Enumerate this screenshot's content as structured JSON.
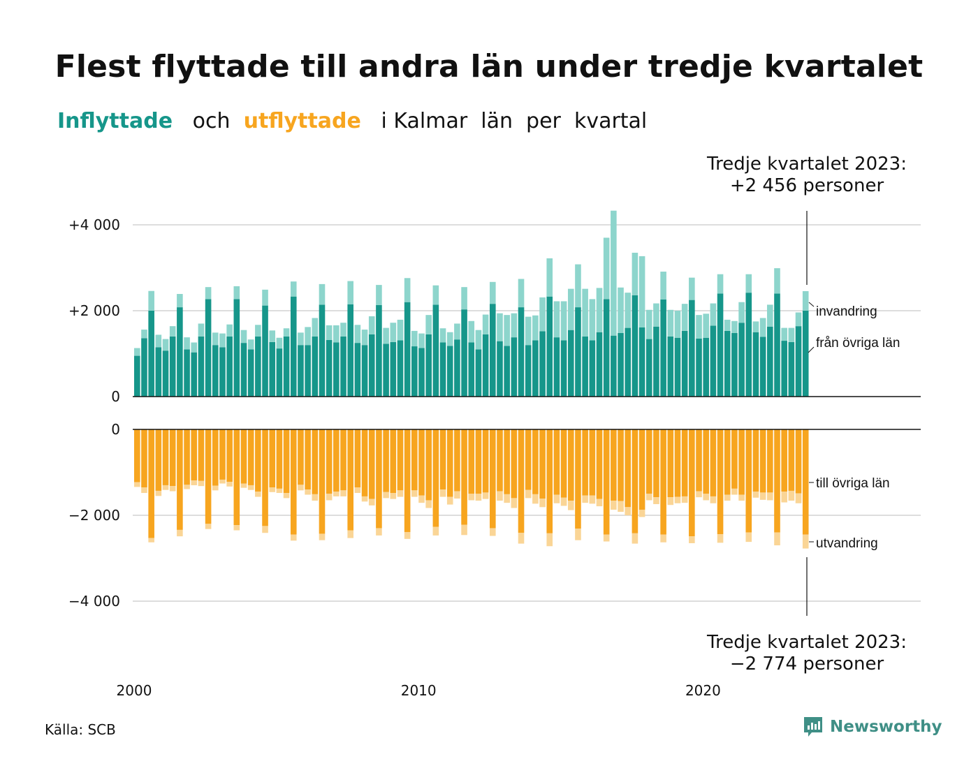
{
  "title": "Flest flyttade till andra län under tredje kvartalet",
  "subtitle": {
    "part1": "Inflyttade",
    "part2": "och",
    "part3": "utflyttade",
    "part4": "i Kalmar  län  per  kvartal"
  },
  "colors": {
    "in_domestic": "#16968a",
    "in_immigration": "#8dd5cc",
    "out_domestic": "#f7a51f",
    "out_emigration": "#fad596",
    "gridline": "#dddddd",
    "axis": "#111111",
    "brand": "#3f8f86"
  },
  "chart_data": [
    {
      "type": "bar",
      "stacked": true,
      "title": "Inflyttade",
      "x": {
        "start_year": 2000,
        "periods_per_year": 4,
        "tick_labels": [
          "2000",
          "2010",
          "2020"
        ]
      },
      "ylim": [
        0,
        4300
      ],
      "yticks": [
        0,
        2000,
        4000
      ],
      "ytick_labels": [
        "0",
        "+2 000",
        "+4 000"
      ],
      "grid": true,
      "series": [
        {
          "name": "från övriga län",
          "values": [
            950,
            1360,
            2000,
            1150,
            1070,
            1400,
            2080,
            1100,
            1030,
            1400,
            2270,
            1200,
            1150,
            1400,
            2270,
            1250,
            1100,
            1400,
            2120,
            1270,
            1120,
            1400,
            2330,
            1200,
            1200,
            1400,
            2140,
            1320,
            1260,
            1400,
            2150,
            1250,
            1200,
            1450,
            2130,
            1230,
            1270,
            1310,
            2200,
            1170,
            1130,
            1450,
            2140,
            1260,
            1180,
            1330,
            2030,
            1260,
            1100,
            1450,
            2160,
            1290,
            1180,
            1380,
            2080,
            1200,
            1310,
            1520,
            2330,
            1380,
            1310,
            1550,
            2080,
            1400,
            1310,
            1500,
            2270,
            1420,
            1480,
            1600,
            2360,
            1610,
            1340,
            1630,
            2260,
            1400,
            1370,
            1530,
            2250,
            1350,
            1370,
            1650,
            2400,
            1530,
            1480,
            1720,
            2420,
            1500,
            1390,
            1630,
            2400,
            1300,
            1270,
            1640,
            2000
          ]
        },
        {
          "name": "invandring",
          "values": [
            180,
            200,
            460,
            290,
            270,
            240,
            310,
            280,
            230,
            300,
            280,
            290,
            320,
            280,
            300,
            300,
            230,
            270,
            370,
            270,
            250,
            190,
            350,
            290,
            420,
            430,
            480,
            340,
            400,
            320,
            540,
            420,
            360,
            420,
            470,
            370,
            450,
            480,
            560,
            360,
            340,
            450,
            450,
            330,
            320,
            370,
            520,
            500,
            450,
            460,
            510,
            650,
            720,
            560,
            660,
            660,
            580,
            790,
            890,
            840,
            910,
            960,
            1000,
            1110,
            960,
            1030,
            1430,
            2910,
            1060,
            820,
            990,
            1660,
            680,
            540,
            650,
            620,
            630,
            630,
            520,
            550,
            560,
            520,
            450,
            260,
            280,
            480,
            430,
            250,
            440,
            510,
            590,
            300,
            330,
            320,
            456
          ]
        }
      ]
    },
    {
      "type": "bar",
      "stacked": true,
      "title": "Utflyttade",
      "ylim": [
        -4500,
        0
      ],
      "yticks": [
        0,
        -2000,
        -4000
      ],
      "ytick_labels": [
        "0",
        "−2 000",
        "−4 000"
      ],
      "grid": true,
      "series": [
        {
          "name": "till övriga län",
          "values": [
            -1230,
            -1350,
            -2530,
            -1430,
            -1300,
            -1320,
            -2340,
            -1290,
            -1190,
            -1200,
            -2200,
            -1310,
            -1170,
            -1220,
            -2230,
            -1260,
            -1300,
            -1450,
            -2250,
            -1350,
            -1380,
            -1480,
            -2450,
            -1290,
            -1400,
            -1510,
            -2430,
            -1500,
            -1450,
            -1420,
            -2350,
            -1350,
            -1560,
            -1620,
            -2300,
            -1460,
            -1480,
            -1420,
            -2390,
            -1420,
            -1540,
            -1650,
            -2270,
            -1400,
            -1570,
            -1440,
            -2220,
            -1500,
            -1500,
            -1470,
            -2300,
            -1440,
            -1510,
            -1600,
            -2410,
            -1410,
            -1510,
            -1610,
            -2420,
            -1520,
            -1590,
            -1660,
            -2310,
            -1540,
            -1540,
            -1620,
            -2450,
            -1660,
            -1670,
            -1810,
            -2420,
            -1870,
            -1500,
            -1580,
            -2450,
            -1580,
            -1570,
            -1560,
            -2490,
            -1440,
            -1500,
            -1560,
            -2440,
            -1520,
            -1380,
            -1520,
            -2400,
            -1450,
            -1470,
            -1470,
            -2400,
            -1450,
            -1430,
            -1490,
            -2450
          ]
        },
        {
          "name": "utvandring",
          "values": [
            -110,
            -130,
            -100,
            -120,
            -110,
            -120,
            -150,
            -100,
            -110,
            -120,
            -120,
            -110,
            -90,
            -110,
            -120,
            -100,
            -110,
            -120,
            -160,
            -110,
            -100,
            -120,
            -140,
            -130,
            -120,
            -150,
            -150,
            -150,
            -110,
            -140,
            -180,
            -130,
            -120,
            -150,
            -170,
            -140,
            -140,
            -150,
            -160,
            -150,
            -170,
            -180,
            -200,
            -170,
            -180,
            -170,
            -240,
            -150,
            -160,
            -150,
            -180,
            -220,
            -200,
            -230,
            -250,
            -190,
            -220,
            -200,
            -300,
            -200,
            -190,
            -220,
            -270,
            -170,
            -190,
            -170,
            -160,
            -210,
            -250,
            -190,
            -240,
            -170,
            -150,
            -160,
            -180,
            -180,
            -150,
            -150,
            -160,
            -140,
            -150,
            -160,
            -200,
            -140,
            -140,
            -140,
            -220,
            -140,
            -170,
            -180,
            -300,
            -250,
            -230,
            -230,
            -324
          ]
        }
      ]
    }
  ],
  "annotations": {
    "top_line1": "Tredje kvartalet 2023:",
    "top_line2": "+2 456 personer",
    "bottom_line1": "Tredje kvartalet 2023:",
    "bottom_line2": "−2 774 personer",
    "label_invandring": "invandring",
    "label_fran": "från övriga län",
    "label_till": "till övriga län",
    "label_utvandring": "utvandring"
  },
  "footer": {
    "source": "Källa: SCB",
    "brand": "Newsworthy",
    "brand_icon": "newsworthy-logo-icon"
  }
}
